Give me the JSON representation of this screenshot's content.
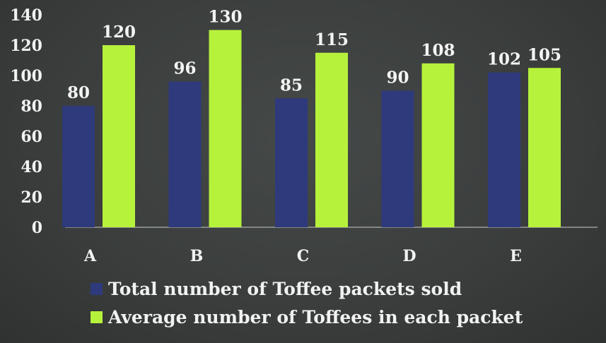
{
  "chart_data": {
    "type": "bar",
    "categories": [
      "A",
      "B",
      "C",
      "D",
      "E"
    ],
    "series": [
      {
        "name": "Total number of Toffee packets sold",
        "values": [
          80,
          96,
          85,
          90,
          102
        ],
        "color": "#2e3a7c"
      },
      {
        "name": "Average number of Toffees in each packet",
        "values": [
          120,
          130,
          115,
          108,
          105
        ],
        "color": "#b6f23c"
      }
    ],
    "ylim": [
      0,
      140
    ],
    "yticks": [
      "0",
      "20",
      "40",
      "60",
      "80",
      "100",
      "120",
      "140"
    ],
    "grid": false,
    "legend_position": "bottom-left",
    "background": "#3a3d3c"
  }
}
